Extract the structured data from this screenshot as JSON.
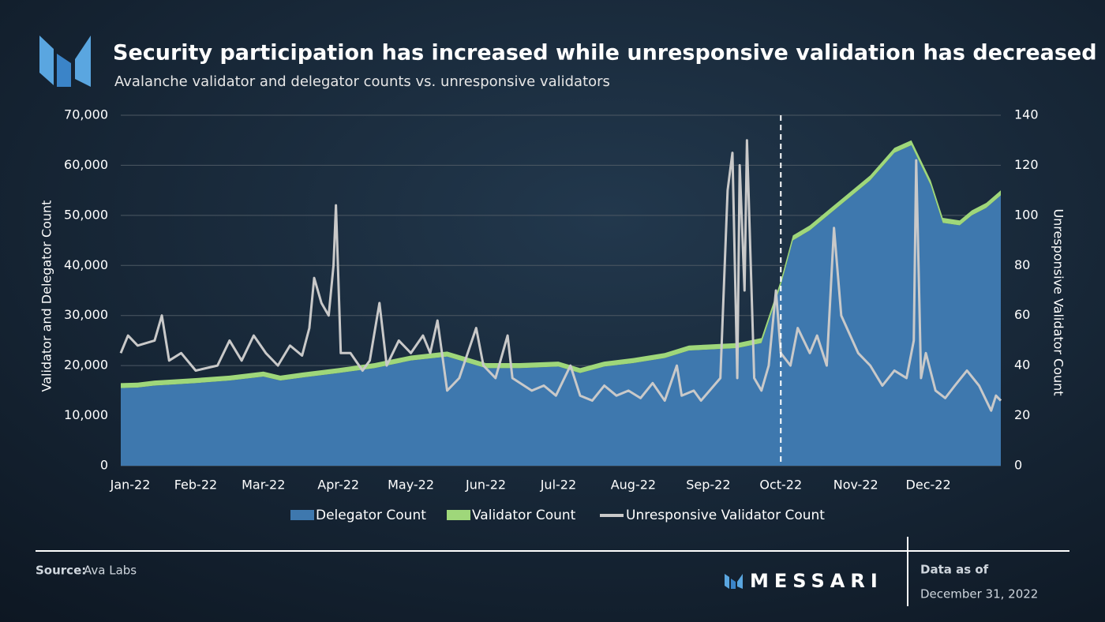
{
  "chart_data": {
    "type": "area",
    "stacked": true,
    "grid": true,
    "title": "Security participation has increased while unresponsive validation has decreased",
    "subtitle": "Avalanche validator and delegator counts vs. unresponsive validators",
    "y_label": "Validator and Delegator Count",
    "y2_label": "Unresponsive Validator Count",
    "x": [
      0,
      7,
      14,
      21,
      31,
      45,
      59,
      66,
      75,
      90,
      105,
      120,
      135,
      151,
      165,
      181,
      190,
      200,
      212,
      225,
      235,
      243,
      255,
      265,
      273,
      278,
      285,
      295,
      300,
      310,
      320,
      327,
      335,
      340,
      347,
      352,
      358,
      364
    ],
    "xlim": [
      0,
      364
    ],
    "xticks": [
      {
        "value": 0,
        "label": "Jan-22"
      },
      {
        "value": 31,
        "label": "Feb-22"
      },
      {
        "value": 59,
        "label": "Mar-22"
      },
      {
        "value": 90,
        "label": "Apr-22"
      },
      {
        "value": 120,
        "label": "May-22"
      },
      {
        "value": 151,
        "label": "Jun-22"
      },
      {
        "value": 181,
        "label": "Jul-22"
      },
      {
        "value": 212,
        "label": "Aug-22"
      },
      {
        "value": 243,
        "label": "Sep-22"
      },
      {
        "value": 273,
        "label": "Oct-22"
      },
      {
        "value": 304,
        "label": "Nov-22"
      },
      {
        "value": 334,
        "label": "Dec-22"
      }
    ],
    "ylim": [
      0,
      70000
    ],
    "yticks": [
      0,
      {
        "value": 10000,
        "label": "10,000"
      },
      {
        "value": 20000,
        "label": "20,000"
      },
      {
        "value": 30000,
        "label": "30,000"
      },
      {
        "value": 40000,
        "label": "40,000"
      },
      {
        "value": 50000,
        "label": "50,000"
      },
      {
        "value": 60000,
        "label": "60,000"
      },
      {
        "value": 70000,
        "label": "70,000"
      }
    ],
    "y2lim": [
      0,
      140
    ],
    "y2ticks": [
      0,
      20,
      40,
      60,
      80,
      100,
      120,
      140
    ],
    "reference_line_x": 273,
    "series": [
      {
        "name": "Delegator Count",
        "color": "#3e78ae",
        "values": [
          15500,
          15600,
          16000,
          16200,
          16500,
          17000,
          17800,
          17000,
          17600,
          18500,
          19500,
          21000,
          21800,
          19500,
          19500,
          19800,
          18500,
          19800,
          20500,
          21500,
          23000,
          23200,
          23500,
          24500,
          36000,
          45000,
          47000,
          51000,
          53000,
          57000,
          62500,
          64000,
          56000,
          48500,
          48000,
          50000,
          51500,
          54000
        ]
      },
      {
        "name": "Validator Count",
        "color": "#9fd77a",
        "values": [
          1000,
          1000,
          1000,
          1000,
          1000,
          1000,
          1000,
          1000,
          1000,
          1000,
          1000,
          1000,
          1000,
          1000,
          1000,
          1000,
          1000,
          1000,
          1000,
          1000,
          1000,
          1000,
          1000,
          1000,
          1000,
          1000,
          1000,
          1000,
          1000,
          1000,
          1000,
          1000,
          1000,
          1000,
          1000,
          1000,
          1000,
          1000
        ]
      },
      {
        "name": "Unresponsive Validator Count",
        "color": "#c9c9c9",
        "type": "line",
        "axis": "y2",
        "x": [
          0,
          3,
          7,
          14,
          17,
          20,
          25,
          31,
          40,
          45,
          50,
          55,
          60,
          65,
          70,
          75,
          78,
          80,
          83,
          86,
          88,
          89,
          91,
          95,
          100,
          103,
          107,
          110,
          115,
          120,
          125,
          128,
          131,
          135,
          140,
          147,
          150,
          155,
          160,
          162,
          170,
          175,
          180,
          186,
          190,
          195,
          200,
          205,
          210,
          215,
          220,
          225,
          230,
          232,
          237,
          240,
          248,
          251,
          253,
          255,
          256,
          258,
          259,
          262,
          265,
          268,
          271,
          273,
          277,
          280,
          285,
          288,
          292,
          295,
          298,
          305,
          310,
          315,
          320,
          325,
          328,
          329,
          331,
          333,
          337,
          341,
          345,
          350,
          355,
          360,
          362,
          364
        ],
        "values": [
          45,
          52,
          48,
          50,
          60,
          42,
          45,
          38,
          40,
          50,
          42,
          52,
          45,
          40,
          48,
          44,
          55,
          75,
          65,
          60,
          80,
          104,
          45,
          45,
          38,
          42,
          65,
          40,
          50,
          45,
          52,
          45,
          58,
          30,
          35,
          55,
          40,
          35,
          52,
          35,
          30,
          32,
          28,
          40,
          28,
          26,
          32,
          28,
          30,
          27,
          33,
          26,
          40,
          28,
          30,
          26,
          35,
          110,
          125,
          35,
          120,
          70,
          130,
          35,
          30,
          40,
          70,
          45,
          40,
          55,
          45,
          52,
          40,
          95,
          60,
          45,
          40,
          32,
          38,
          35,
          50,
          122,
          35,
          45,
          30,
          27,
          32,
          38,
          32,
          22,
          28,
          26
        ]
      }
    ]
  },
  "footer": {
    "source_label": "Source:",
    "source": "Ava Labs",
    "brand": "MESSARI",
    "date_label": "Data as of",
    "date": "December 31, 2022"
  }
}
